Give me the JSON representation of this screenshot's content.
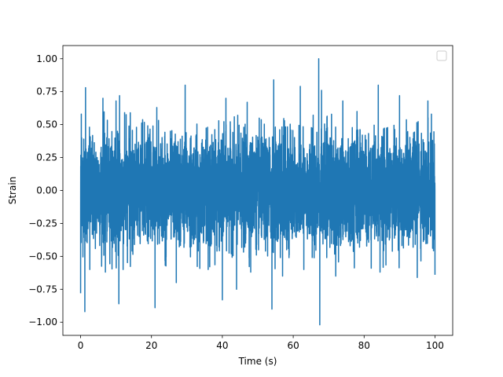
{
  "chart_data": {
    "type": "line",
    "title": "",
    "xlabel": "Time (s)",
    "ylabel": "Strain",
    "xlim": [
      -5,
      105
    ],
    "ylim": [
      -1.1,
      1.1
    ],
    "xticks": [
      0,
      20,
      40,
      60,
      80,
      100
    ],
    "xtick_labels": [
      "0",
      "20",
      "40",
      "60",
      "80",
      "100"
    ],
    "yticks": [
      -1.0,
      -0.75,
      -0.5,
      -0.25,
      0.0,
      0.25,
      0.5,
      0.75,
      1.0
    ],
    "ytick_labels": [
      "−1.00",
      "−0.75",
      "−0.50",
      "−0.25",
      "0.00",
      "0.25",
      "0.50",
      "0.75",
      "1.00"
    ],
    "grid": false,
    "legend": {
      "placement": "top-right",
      "entries": []
    },
    "series": [
      {
        "color": "#1f77b4",
        "x_range": [
          0,
          100
        ],
        "y_range_typical": [
          -0.5,
          0.5
        ],
        "x": [
          0.0,
          0.2,
          0.3,
          1.2,
          1.4,
          2.6,
          6.3,
          7.0,
          10.0,
          10.8,
          11.0,
          12.0,
          21.0,
          21.5,
          27.0,
          29.5,
          36.0,
          40.0,
          41.0,
          44.0,
          47.0,
          48.0,
          54.0,
          54.5,
          57.0,
          62.0,
          63.0,
          67.2,
          67.5,
          68.0,
          72.0,
          74.0,
          78.0,
          84.0,
          84.5,
          90.0,
          95.0,
          98.0,
          99.0,
          100.0
        ],
        "y": [
          -0.78,
          0.58,
          0.4,
          -0.92,
          0.78,
          -0.6,
          0.7,
          -0.62,
          0.68,
          -0.86,
          0.72,
          -0.6,
          -0.89,
          0.63,
          -0.7,
          0.8,
          -0.6,
          -0.83,
          0.7,
          -0.75,
          0.67,
          -0.62,
          -0.9,
          0.84,
          -0.65,
          0.79,
          -0.6,
          1.0,
          -1.02,
          0.76,
          -0.65,
          0.68,
          0.6,
          0.8,
          -0.62,
          0.72,
          -0.66,
          0.68,
          0.58,
          -0.64
        ]
      }
    ]
  }
}
